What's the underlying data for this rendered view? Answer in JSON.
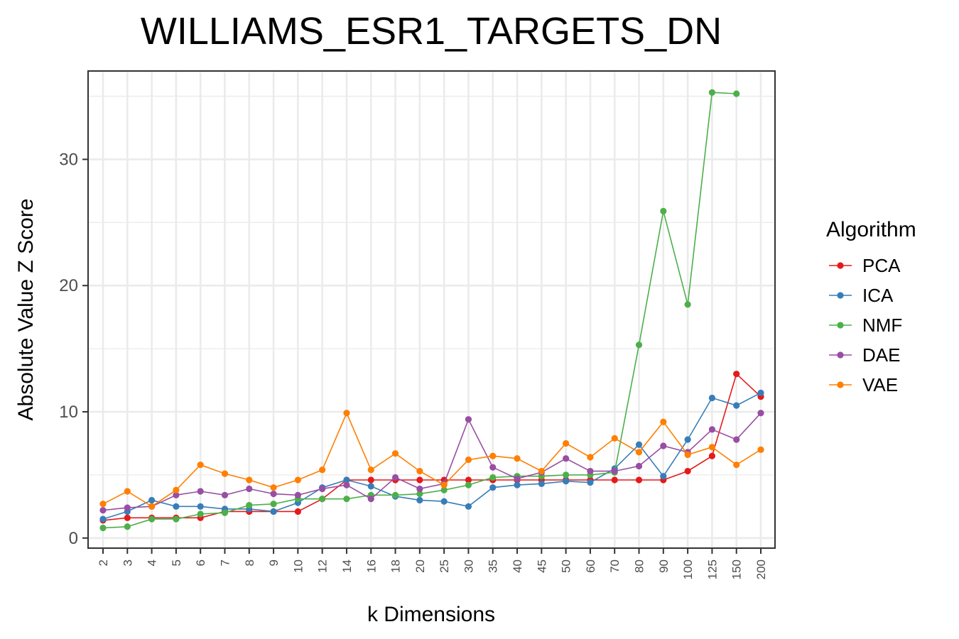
{
  "chart_data": {
    "type": "line",
    "title": "WILLIAMS_ESR1_TARGETS_DN",
    "xlabel": "k Dimensions",
    "ylabel": "Absolute Value Z Score",
    "categories": [
      "2",
      "3",
      "4",
      "5",
      "6",
      "7",
      "8",
      "9",
      "10",
      "12",
      "14",
      "16",
      "18",
      "20",
      "25",
      "30",
      "35",
      "40",
      "45",
      "50",
      "60",
      "70",
      "80",
      "90",
      "100",
      "125",
      "150",
      "200"
    ],
    "ylim": [
      -0.8,
      37
    ],
    "yticks": [
      0,
      10,
      20,
      30
    ],
    "grid": true,
    "legend": {
      "title": "Algorithm",
      "position": "right"
    },
    "series": [
      {
        "name": "PCA",
        "color": "#E41A1C",
        "values": [
          1.4,
          1.6,
          1.6,
          1.6,
          1.6,
          2.1,
          2.1,
          2.1,
          2.1,
          3.1,
          4.6,
          4.6,
          4.6,
          4.6,
          4.6,
          4.6,
          4.6,
          4.6,
          4.6,
          4.6,
          4.6,
          4.6,
          4.6,
          4.6,
          5.3,
          6.5,
          13.0,
          11.2
        ]
      },
      {
        "name": "ICA",
        "color": "#377EB8",
        "values": [
          1.5,
          2.1,
          3.0,
          2.5,
          2.5,
          2.3,
          2.3,
          2.1,
          2.8,
          4.0,
          4.6,
          4.1,
          3.3,
          3.0,
          2.9,
          2.5,
          4.0,
          4.2,
          4.3,
          4.5,
          4.4,
          5.5,
          7.4,
          4.9,
          7.8,
          11.1,
          10.5,
          11.5
        ]
      },
      {
        "name": "NMF",
        "color": "#4DAF4A",
        "values": [
          0.8,
          0.9,
          1.5,
          1.5,
          1.9,
          2.0,
          2.6,
          2.7,
          3.1,
          3.1,
          3.1,
          3.4,
          3.4,
          3.5,
          3.8,
          4.2,
          4.8,
          4.9,
          4.9,
          5.0,
          5.0,
          5.2,
          15.3,
          25.9,
          18.5,
          35.3,
          35.2,
          null
        ]
      },
      {
        "name": "DAE",
        "color": "#984EA3",
        "values": [
          2.2,
          2.4,
          2.5,
          3.4,
          3.7,
          3.4,
          3.9,
          3.5,
          3.4,
          3.9,
          4.2,
          3.1,
          4.8,
          3.9,
          4.3,
          9.4,
          5.6,
          4.7,
          5.2,
          6.3,
          5.3,
          5.3,
          5.7,
          7.3,
          6.8,
          8.6,
          7.8,
          9.9
        ]
      },
      {
        "name": "VAE",
        "color": "#FF7F00",
        "values": [
          2.7,
          3.7,
          2.5,
          3.8,
          5.8,
          5.1,
          4.6,
          4.0,
          4.6,
          5.4,
          9.9,
          5.4,
          6.7,
          5.3,
          4.2,
          6.2,
          6.5,
          6.3,
          5.3,
          7.5,
          6.4,
          7.9,
          6.8,
          9.2,
          6.6,
          7.2,
          5.8,
          7.0
        ]
      }
    ]
  }
}
